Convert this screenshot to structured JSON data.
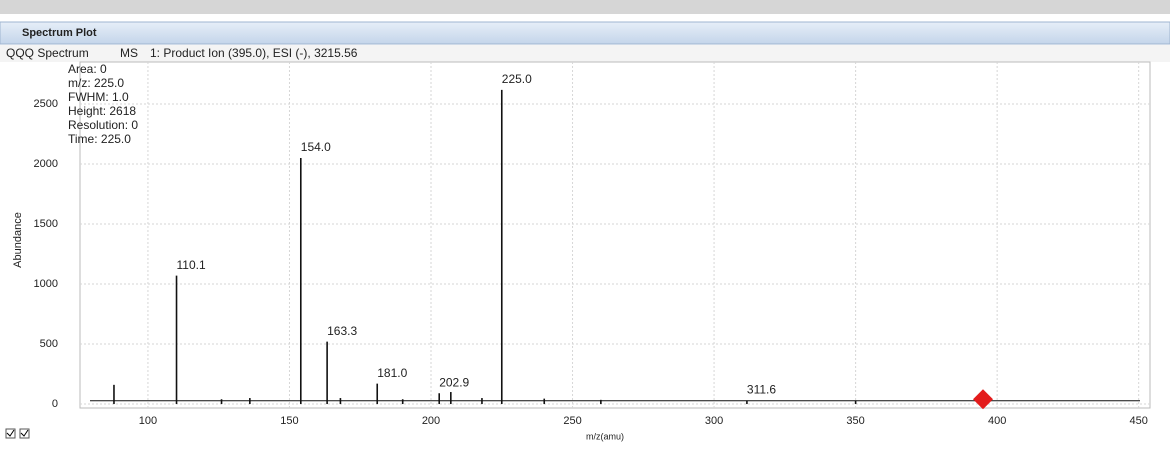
{
  "panel_title": "Spectrum Plot",
  "tab": {
    "name": "QQQ Spectrum",
    "mode": "MS",
    "scan": "1: Product Ion (395.0), ESI (-), 3215.56"
  },
  "chart_data": {
    "type": "stick",
    "xlabel": "m/z(amu)",
    "ylabel": "Abundance",
    "color": "#111111",
    "x": [
      88,
      110.1,
      126,
      136,
      154.0,
      163.3,
      168,
      181.0,
      190,
      202.9,
      207,
      218,
      225.0,
      240,
      260,
      311.6,
      350
    ],
    "values": [
      160,
      1070,
      40,
      50,
      2050,
      520,
      50,
      170,
      40,
      90,
      100,
      50,
      2618,
      45,
      35,
      30,
      30
    ],
    "peak_labels": [
      {
        "value": 110.1,
        "label": "110.1"
      },
      {
        "value": 154.0,
        "label": "154.0"
      },
      {
        "value": 163.3,
        "label": "163.3"
      },
      {
        "value": 181.0,
        "label": "181.0"
      },
      {
        "value": 202.9,
        "label": "202.9"
      },
      {
        "value": 225.0,
        "label": "225.0"
      },
      {
        "value": 311.6,
        "label": "311.6"
      }
    ],
    "info": [
      "Area: 0",
      "m/z: 225.0",
      "FWHM: 1.0",
      "Height: 2618",
      "Resolution: 0",
      "Time: 225.0"
    ],
    "precursor": {
      "x": 395,
      "y": 40,
      "color": "#e31b1b"
    },
    "xlim": [
      76,
      454
    ],
    "ylim": [
      -33,
      2850
    ],
    "xticks": [
      100,
      150,
      200,
      250,
      300,
      350,
      400,
      450
    ],
    "yticks": [
      0,
      500,
      1000,
      1500,
      2000,
      2500
    ],
    "grid": true
  }
}
